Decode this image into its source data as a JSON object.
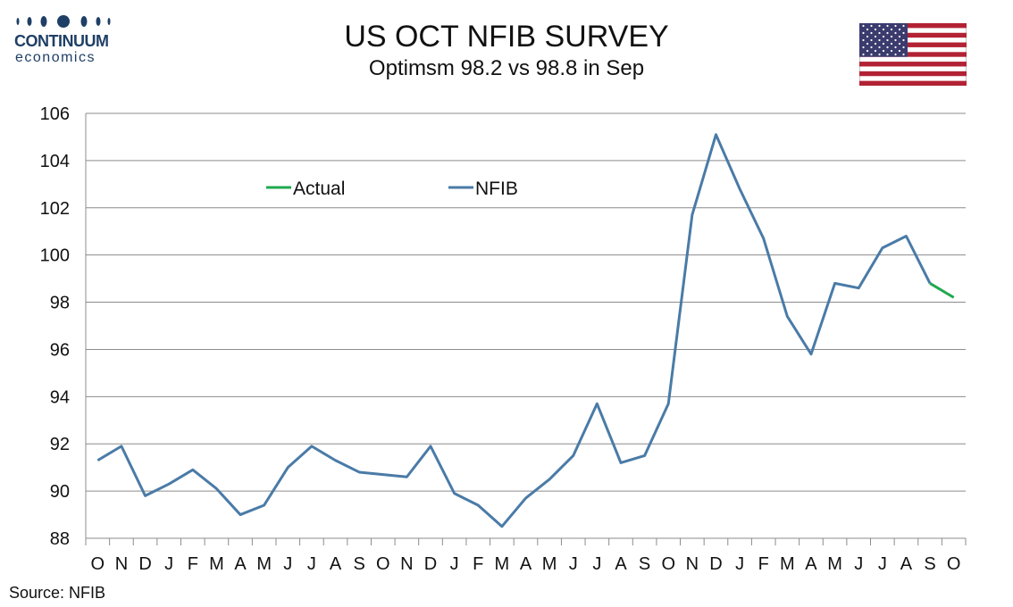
{
  "header": {
    "brand_name": "CONTINUUM",
    "brand_sub": "economics",
    "title": "US OCT NFIB SURVEY",
    "subtitle": "Optimsm 98.2 vs 98.8 in Sep"
  },
  "flag": {
    "icon": "us-flag-icon",
    "colors": {
      "red": "#b22234",
      "white": "#ffffff",
      "blue": "#3c3b6e"
    }
  },
  "footer": {
    "source": "Source: NFIB"
  },
  "chart_data": {
    "type": "line",
    "title": "US OCT NFIB SURVEY",
    "subtitle": "Optimsm 98.2 vs 98.8 in Sep",
    "xlabel": "",
    "ylabel": "",
    "ylim": [
      88,
      106
    ],
    "yticks": [
      88,
      90,
      92,
      94,
      96,
      98,
      100,
      102,
      104,
      106
    ],
    "grid": true,
    "legend_placement": "upper-left",
    "categories": [
      "O",
      "N",
      "D",
      "J",
      "F",
      "M",
      "A",
      "M",
      "J",
      "J",
      "A",
      "S",
      "O",
      "N",
      "D",
      "J",
      "F",
      "M",
      "A",
      "M",
      "J",
      "J",
      "A",
      "S",
      "O",
      "N",
      "D",
      "J",
      "F",
      "M",
      "A",
      "M",
      "J",
      "J",
      "A",
      "S",
      "O"
    ],
    "series": [
      {
        "name": "NFIB",
        "color": "#4a7ba7",
        "values": [
          91.3,
          91.9,
          89.8,
          90.3,
          90.9,
          90.1,
          89.0,
          89.4,
          91.0,
          91.9,
          91.3,
          90.8,
          90.7,
          90.6,
          91.9,
          89.9,
          89.4,
          88.5,
          89.7,
          90.5,
          91.5,
          93.7,
          91.2,
          91.5,
          93.7,
          101.7,
          105.1,
          102.8,
          100.7,
          97.4,
          95.8,
          98.8,
          98.6,
          100.3,
          100.8,
          98.8,
          null
        ]
      },
      {
        "name": "Actual",
        "color": "#1fa84f",
        "values": [
          null,
          null,
          null,
          null,
          null,
          null,
          null,
          null,
          null,
          null,
          null,
          null,
          null,
          null,
          null,
          null,
          null,
          null,
          null,
          null,
          null,
          null,
          null,
          null,
          null,
          null,
          null,
          null,
          null,
          null,
          null,
          null,
          null,
          null,
          null,
          98.8,
          98.2
        ]
      }
    ]
  }
}
